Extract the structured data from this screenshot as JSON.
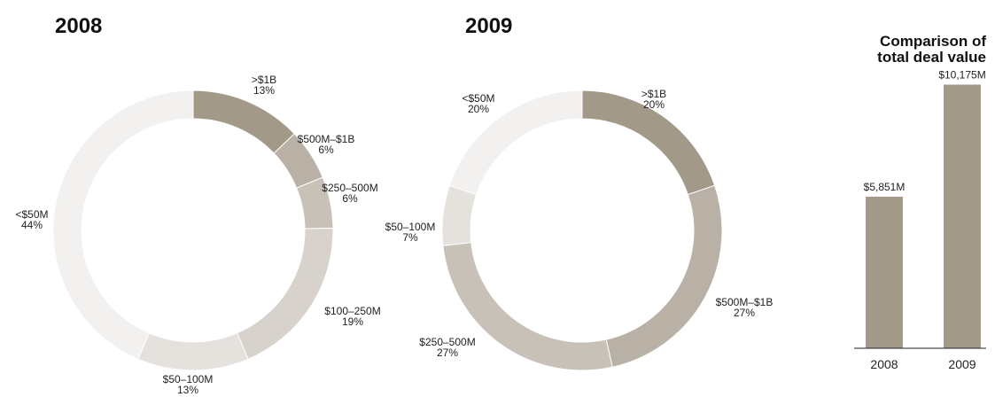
{
  "chart_data": [
    {
      "type": "pie",
      "title": "2008",
      "slices": [
        {
          "label": ">$1B",
          "value": 13,
          "display": "13%",
          "color": "#a39989"
        },
        {
          "label": "$500M–$1B",
          "value": 6,
          "display": "6%",
          "color": "#b9b1a6"
        },
        {
          "label": "$250–500M",
          "value": 6,
          "display": "6%",
          "color": "#c8c1b8"
        },
        {
          "label": "$100–250M",
          "value": 19,
          "display": "19%",
          "color": "#d7d2cb"
        },
        {
          "label": "$50–100M",
          "value": 13,
          "display": "13%",
          "color": "#e5e2dd"
        },
        {
          "label": "<$50M",
          "value": 44,
          "display": "44%",
          "color": "#f2f1ef"
        }
      ]
    },
    {
      "type": "pie",
      "title": "2009",
      "slices": [
        {
          "label": ">$1B",
          "value": 20,
          "display": "20%",
          "color": "#a39989"
        },
        {
          "label": "$500M–$1B",
          "value": 27,
          "display": "27%",
          "color": "#b9b1a6"
        },
        {
          "label": "$250–500M",
          "value": 27,
          "display": "27%",
          "color": "#c8c1b8"
        },
        {
          "label": "$50–100M",
          "value": 7,
          "display": "7%",
          "color": "#e5e2dd"
        },
        {
          "label": "<$50M",
          "value": 20,
          "display": "20%",
          "color": "#f2f1ef"
        }
      ]
    },
    {
      "type": "bar",
      "title": "Comparison of total deal value",
      "title_lines": [
        "Comparison of",
        "total deal value"
      ],
      "categories": [
        "2008",
        "2009"
      ],
      "values": [
        5851,
        10175
      ],
      "value_labels": [
        "$5,851M",
        "$10,175M"
      ],
      "color": "#a39989",
      "ylim": [
        0,
        10500
      ]
    }
  ]
}
